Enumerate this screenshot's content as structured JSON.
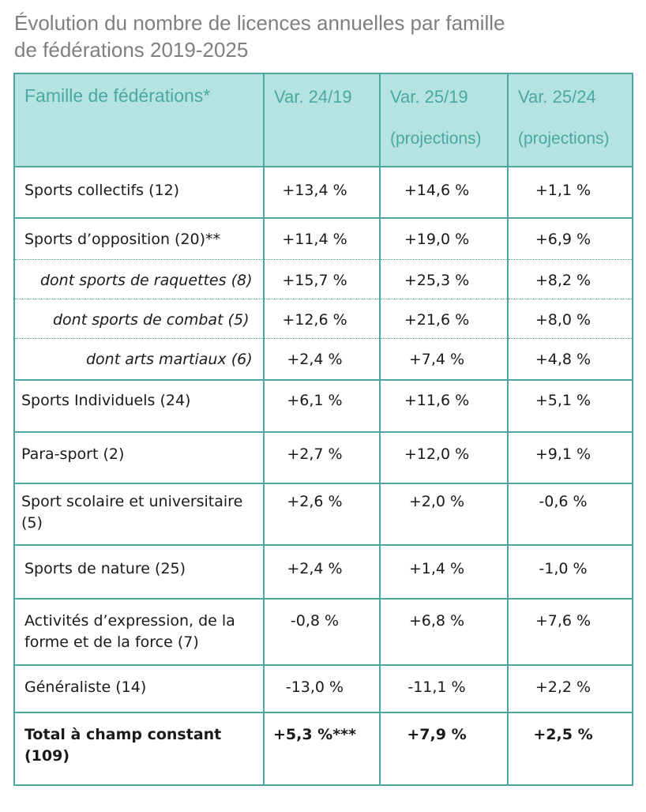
{
  "title": {
    "line1": "Évolution du nombre de licences annuelles par famille",
    "line2": "de fédérations 2019-2025"
  },
  "colors": {
    "header_bg": "#b5e4e0",
    "header_text": "#4aa7a2",
    "border": "#4aa7a2",
    "title": "#7f7f7f"
  },
  "headers": [
    {
      "label": "Famille de fédérations*",
      "sub": ""
    },
    {
      "label": "Var. 24/19",
      "sub": ""
    },
    {
      "label": "Var. 25/19",
      "sub": "(projections)"
    },
    {
      "label": "Var. 25/24",
      "sub": "(projections)"
    }
  ],
  "rows": [
    {
      "name": "Sports collectifs (12)",
      "v1": "+13,4 %",
      "v2": "+14,6 %",
      "v3": "+1,1 %"
    },
    {
      "name": "Sports d’opposition (20)**",
      "v1": "+11,4 %",
      "v2": "+19,0 %",
      "v3": "+6,9 %"
    },
    {
      "name": "dont sports de raquettes (8)",
      "v1": "+15,7 %",
      "v2": "+25,3 %",
      "v3": "+8,2 %"
    },
    {
      "name": "dont sports de combat (5)",
      "v1": "+12,6 %",
      "v2": "+21,6 %",
      "v3": "+8,0 %"
    },
    {
      "name": "dont arts martiaux (6)",
      "v1": "+2,4 %",
      "v2": "+7,4 %",
      "v3": "+4,8 %"
    },
    {
      "name": "Sports Individuels (24)",
      "v1": "+6,1 %",
      "v2": "+11,6 %",
      "v3": "+5,1 %"
    },
    {
      "name": "Para-sport (2)",
      "v1": "+2,7 %",
      "v2": "+12,0 %",
      "v3": "+9,1 %"
    },
    {
      "name": "Sport scolaire et universitaire (5)",
      "v1": "+2,6 %",
      "v2": "+2,0 %",
      "v3": "-0,6 %"
    },
    {
      "name": "Sports de nature (25)",
      "v1": "+2,4 %",
      "v2": "+1,4 %",
      "v3": "-1,0 %"
    },
    {
      "name": "Activités d’expression, de la forme et de la force (7)",
      "v1": "-0,8 %",
      "v2": "+6,8 %",
      "v3": "+7,6 %"
    },
    {
      "name": "Généraliste (14)",
      "v1": "-13,0 %",
      "v2": "-11,1 %",
      "v3": "+2,2 %"
    },
    {
      "name": "Total à champ constant (109)",
      "v1": "+5,3 %***",
      "v2": "+7,9 %",
      "v3": "+2,5 %"
    }
  ]
}
